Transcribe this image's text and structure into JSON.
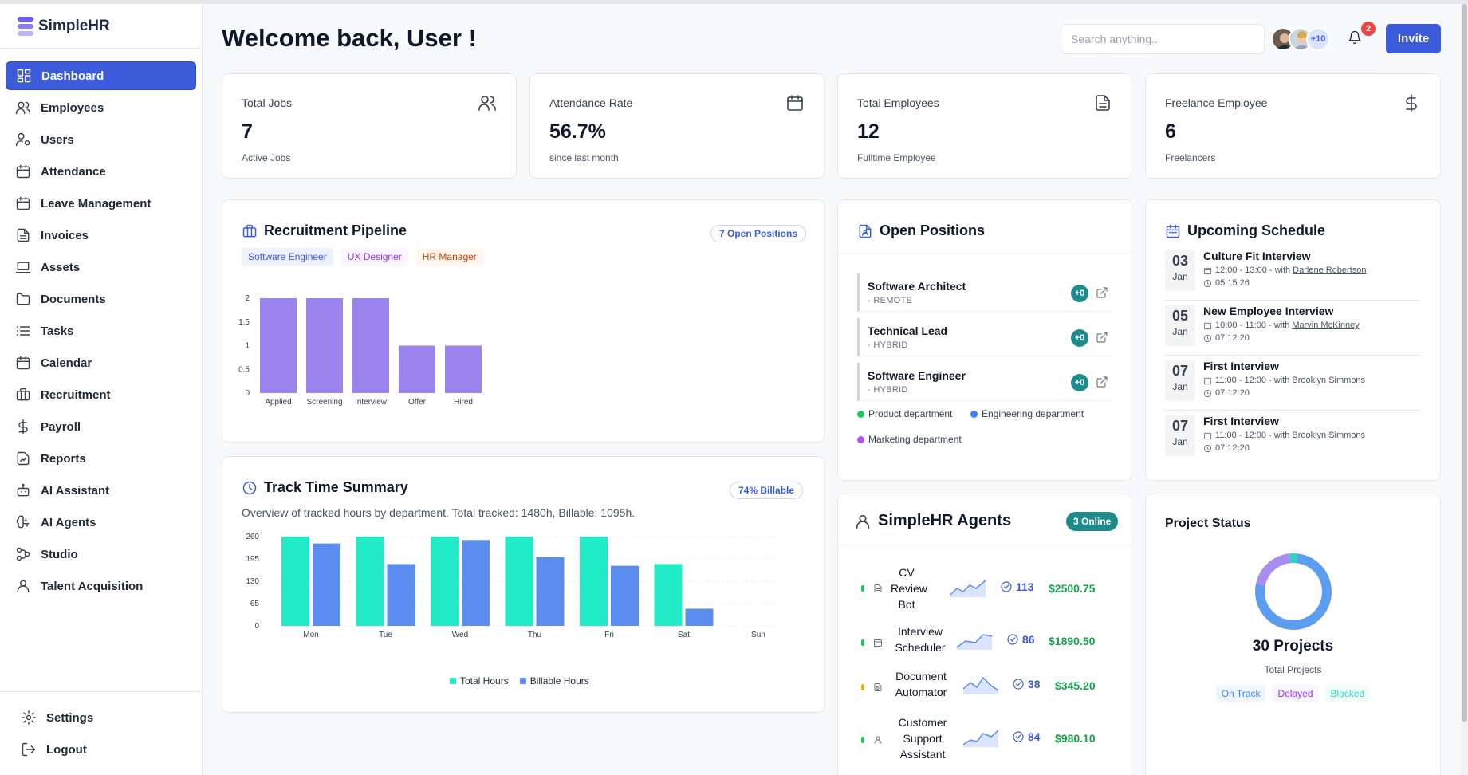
{
  "brand": {
    "name": "SimpleHR"
  },
  "sidebar": {
    "items": [
      {
        "label": "Dashboard",
        "icon": "dashboard-icon"
      },
      {
        "label": "Employees",
        "icon": "users-icon"
      },
      {
        "label": "Users",
        "icon": "user-cog-icon"
      },
      {
        "label": "Attendance",
        "icon": "calendar-icon"
      },
      {
        "label": "Leave Management",
        "icon": "calendar-icon"
      },
      {
        "label": "Invoices",
        "icon": "file-text-icon"
      },
      {
        "label": "Assets",
        "icon": "laptop-icon"
      },
      {
        "label": "Documents",
        "icon": "folder-icon"
      },
      {
        "label": "Tasks",
        "icon": "list-icon"
      },
      {
        "label": "Calendar",
        "icon": "calendar-icon"
      },
      {
        "label": "Recruitment",
        "icon": "briefcase-icon"
      },
      {
        "label": "Payroll",
        "icon": "dollar-icon"
      },
      {
        "label": "Reports",
        "icon": "report-icon"
      },
      {
        "label": "AI Assistant",
        "icon": "bot-icon"
      },
      {
        "label": "AI Agents",
        "icon": "brain-icon"
      },
      {
        "label": "Studio",
        "icon": "workflow-icon"
      },
      {
        "label": "Talent Acquisition",
        "icon": "user-icon"
      }
    ],
    "bottom": [
      {
        "label": "Settings",
        "icon": "gear-icon"
      },
      {
        "label": "Logout",
        "icon": "logout-icon"
      }
    ]
  },
  "header": {
    "welcome": "Welcome back, User !",
    "search_placeholder": "Search anything..",
    "avatar_more": "+10",
    "notification_count": "2",
    "invite_label": "Invite"
  },
  "stats": [
    {
      "label": "Total Jobs",
      "value": "7",
      "sub": "Active Jobs",
      "icon": "users-icon"
    },
    {
      "label": "Attendance Rate",
      "value": "56.7%",
      "sub": "since last month",
      "icon": "calendar-icon"
    },
    {
      "label": "Total Employees",
      "value": "12",
      "sub": "Fulltime Employee",
      "icon": "file-text-icon"
    },
    {
      "label": "Freelance Employee",
      "value": "6",
      "sub": "Freelancers",
      "icon": "dollar-icon"
    }
  ],
  "recruitment": {
    "title": "Recruitment Pipeline",
    "badge": "7 Open Positions",
    "tags": [
      "Software Engineer",
      "UX Designer",
      "HR Manager"
    ]
  },
  "track": {
    "title": "Track Time Summary",
    "badge": "74% Billable",
    "subtitle": "Overview of tracked hours by department. Total tracked: 1480h, Billable: 1095h.",
    "legend": [
      "Total Hours",
      "Billable Hours"
    ]
  },
  "open_positions": {
    "title": "Open Positions",
    "items": [
      {
        "title": "Software Architect",
        "mode": "· REMOTE",
        "count": "+0"
      },
      {
        "title": "Technical Lead",
        "mode": "· HYBRID",
        "count": "+0"
      },
      {
        "title": "Software Engineer",
        "mode": "· HYBRID",
        "count": "+0"
      }
    ],
    "departments": [
      {
        "name": "Product department",
        "color": "#22c55e"
      },
      {
        "name": "Engineering department",
        "color": "#3b82f6"
      },
      {
        "name": "Marketing department",
        "color": "#a855f7"
      }
    ]
  },
  "schedule": {
    "title": "Upcoming Schedule",
    "events": [
      {
        "day": "03",
        "month": "Jan",
        "title": "Culture Fit Interview",
        "time": "12:00 - 13:00 - with",
        "person": "Darlene Robertson",
        "remaining": "05:15:26"
      },
      {
        "day": "05",
        "month": "Jan",
        "title": "New Employee Interview",
        "time": "10:00 - 11:00 - with",
        "person": "Marvin McKinney",
        "remaining": "07:12:20"
      },
      {
        "day": "07",
        "month": "Jan",
        "title": "First Interview",
        "time": "11:00 - 12:00 - with",
        "person": "Brooklyn Simmons",
        "remaining": "07:12:20"
      },
      {
        "day": "07",
        "month": "Jan",
        "title": "First Interview",
        "time": "11:00 - 12:00 - with",
        "person": "Brooklyn Simmons",
        "remaining": "07:12:20"
      }
    ]
  },
  "agents": {
    "title": "SimpleHR Agents",
    "online": "3 Online",
    "items": [
      {
        "lines": [
          "CV",
          "Review",
          "Bot"
        ],
        "count": "113",
        "amount": "$2500.75",
        "status_color": "#22c55e"
      },
      {
        "lines": [
          "Interview",
          "Scheduler"
        ],
        "count": "86",
        "amount": "$1890.50",
        "status_color": "#22c55e"
      },
      {
        "lines": [
          "Document",
          "Automator"
        ],
        "count": "38",
        "amount": "$345.20",
        "status_color": "#eab308"
      },
      {
        "lines": [
          "Customer",
          "Support",
          "Assistant"
        ],
        "count": "84",
        "amount": "$980.10",
        "status_color": "#22c55e"
      }
    ]
  },
  "project_status": {
    "title": "Project Status",
    "total": "30 Projects",
    "label": "Total Projects",
    "tags": [
      {
        "label": "On Track",
        "color": "#3b82f6",
        "bg": "#eff6ff"
      },
      {
        "label": "Delayed",
        "color": "#9333ea",
        "bg": "#faf5ff"
      },
      {
        "label": "Blocked",
        "color": "#2dd4bf",
        "bg": "#f0fdfa"
      }
    ]
  },
  "chart_data": [
    {
      "type": "bar",
      "title": "Recruitment Pipeline",
      "categories": [
        "Applied",
        "Screening",
        "Interview",
        "Offer",
        "Hired"
      ],
      "values": [
        2,
        2,
        2,
        1,
        1
      ],
      "ylim": [
        0,
        2
      ],
      "yticks": [
        "0",
        "0.5",
        "1",
        "1.5",
        "2"
      ],
      "color": "#9b84ee"
    },
    {
      "type": "bar",
      "title": "Track Time Summary",
      "categories": [
        "Mon",
        "Tue",
        "Wed",
        "Thu",
        "Fri",
        "Sat",
        "Sun"
      ],
      "series": [
        {
          "name": "Total Hours",
          "values": [
            260,
            260,
            260,
            260,
            260,
            180,
            0
          ],
          "color": "#22ecc8"
        },
        {
          "name": "Billable Hours",
          "values": [
            240,
            180,
            250,
            200,
            175,
            50,
            0
          ],
          "color": "#5b8def"
        }
      ],
      "ylim": [
        0,
        260
      ],
      "yticks": [
        "0",
        "65",
        "130",
        "195",
        "260"
      ]
    },
    {
      "type": "pie",
      "title": "Project Status",
      "categories": [
        "On Track",
        "Delayed",
        "Blocked"
      ],
      "values": [
        23,
        6,
        1
      ],
      "colors": [
        "#5b9ef0",
        "#a98cf2",
        "#2dd4bf"
      ]
    }
  ]
}
